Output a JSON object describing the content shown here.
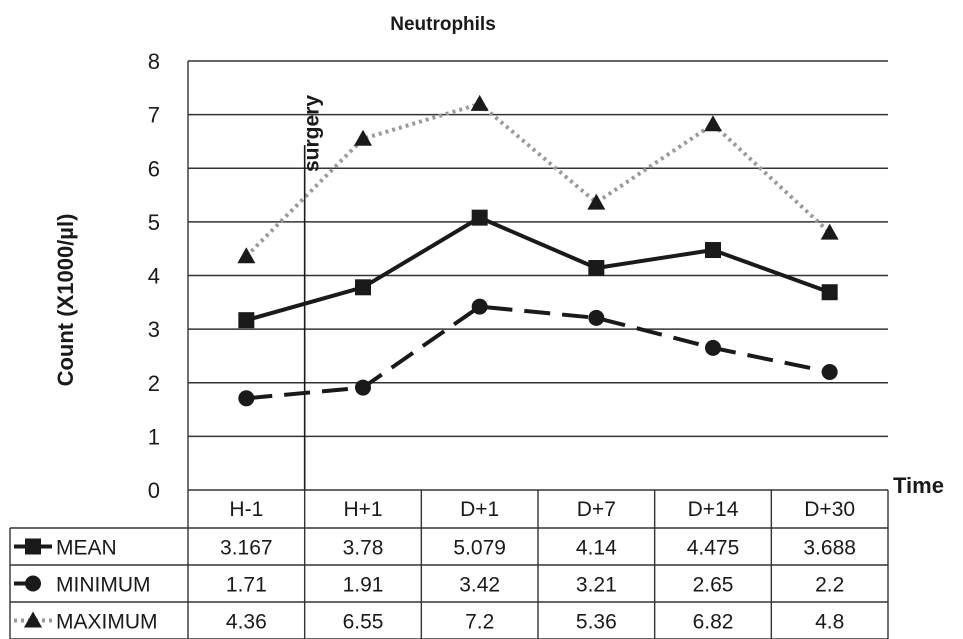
{
  "chart_data": {
    "type": "line",
    "title": "Neutrophils",
    "ylabel": "Count (X1000/µl)",
    "xlabel": "Time",
    "ylim": [
      0,
      8
    ],
    "yticks": [
      0,
      1,
      2,
      3,
      4,
      5,
      6,
      7,
      8
    ],
    "grid": true,
    "categories": [
      "H-1",
      "H+1",
      "D+1",
      "D+7",
      "D+14",
      "D+30"
    ],
    "series": [
      {
        "name": "MEAN",
        "values": [
          3.167,
          3.78,
          5.079,
          4.14,
          4.475,
          3.688
        ],
        "labels": [
          "3.167",
          "3.78",
          "5.079",
          "4.14",
          "4.475",
          "3.688"
        ],
        "marker": "square",
        "line": "solid"
      },
      {
        "name": "MINIMUM",
        "values": [
          1.71,
          1.91,
          3.42,
          3.21,
          2.65,
          2.2
        ],
        "labels": [
          "1.71",
          "1.91",
          "3.42",
          "3.21",
          "2.65",
          "2.2"
        ],
        "marker": "circle",
        "line": "dashed"
      },
      {
        "name": "MAXIMUM",
        "values": [
          4.36,
          6.55,
          7.2,
          5.36,
          6.82,
          4.8
        ],
        "labels": [
          "4.36",
          "6.55",
          "7.2",
          "5.36",
          "6.82",
          "4.8"
        ],
        "marker": "triangle",
        "line": "dotted"
      }
    ],
    "annotations": [
      {
        "text": "surgery",
        "between": [
          "H-1",
          "H+1"
        ]
      }
    ],
    "legend": "data-table-left",
    "colors": {
      "line": "#1a1a1a",
      "dotted": "#9a9a9a",
      "grid": "#333333"
    }
  }
}
